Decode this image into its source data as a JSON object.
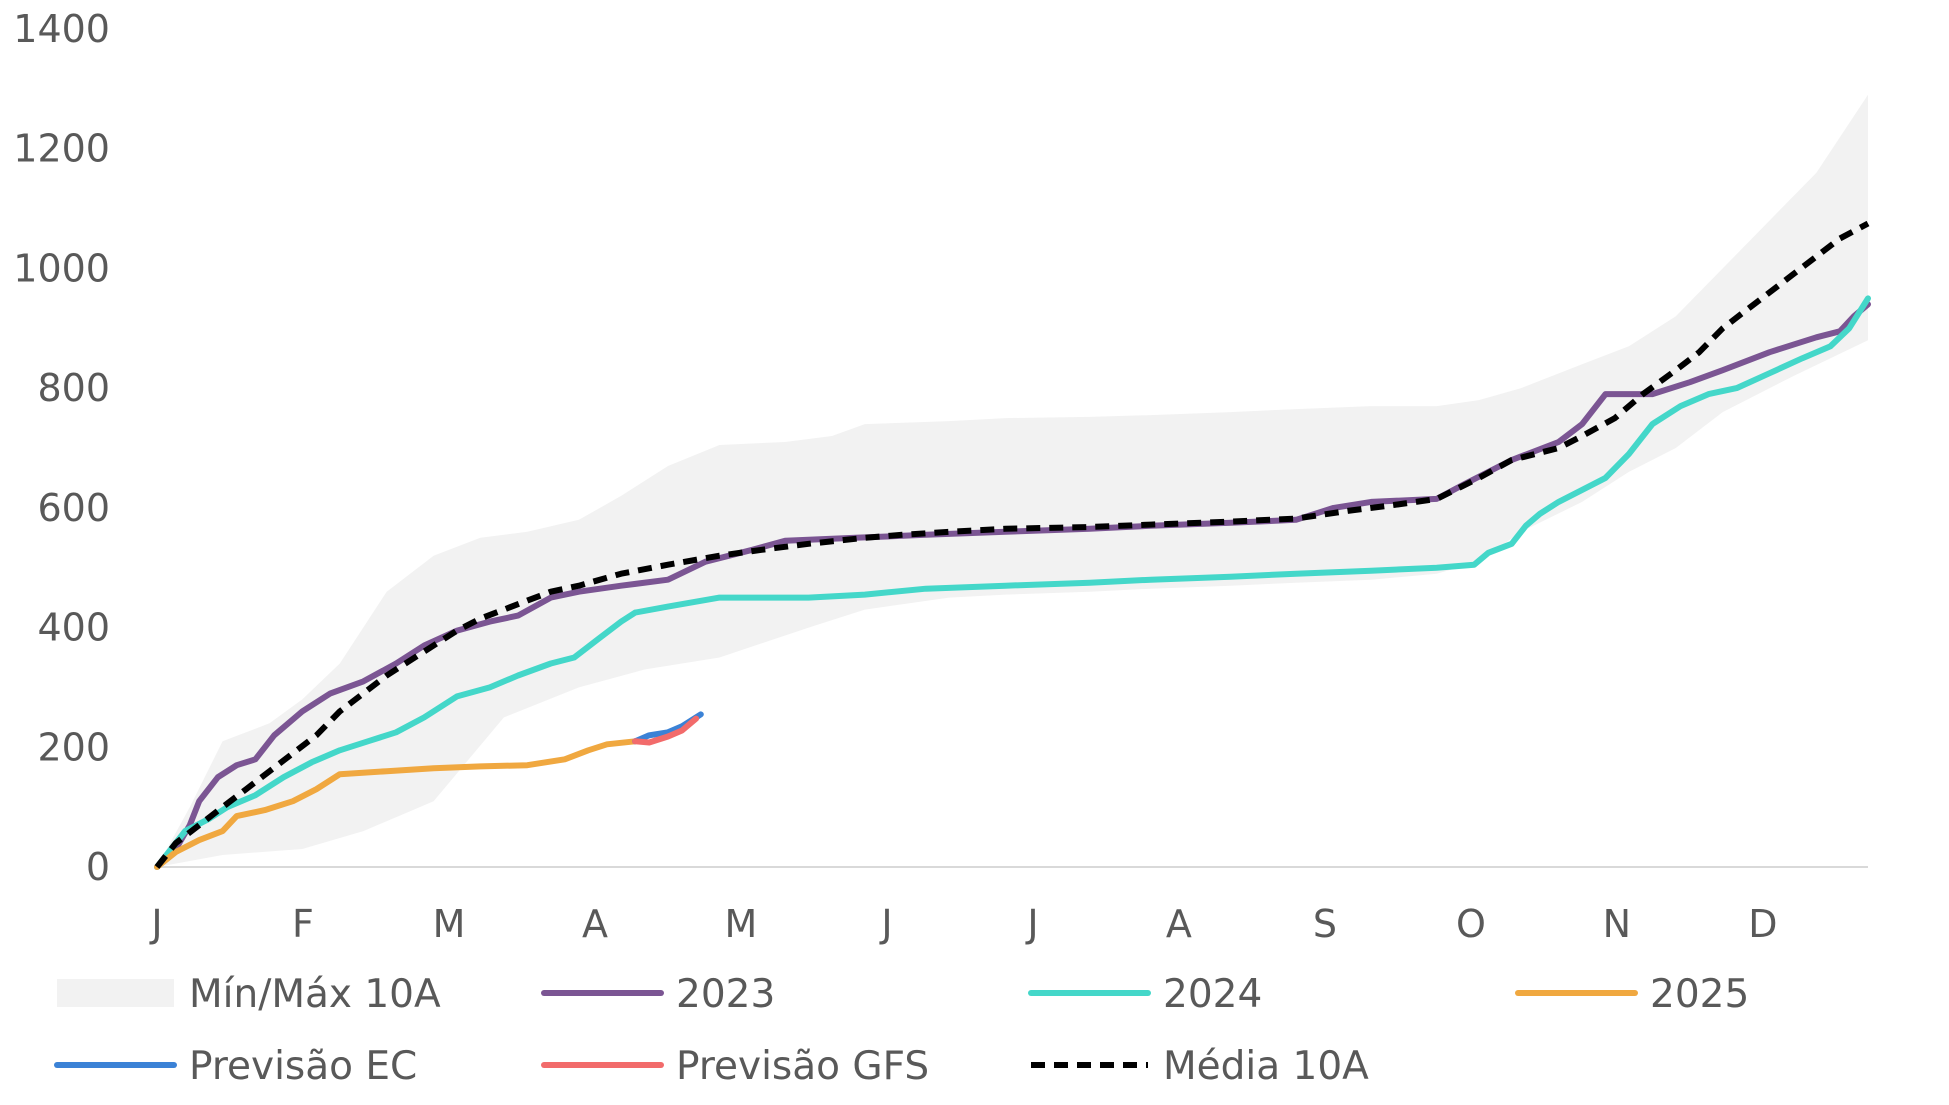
{
  "chart_data": {
    "type": "line",
    "y_ticks": [
      "0",
      "200",
      "400",
      "600",
      "800",
      "1000",
      "1200",
      "1400"
    ],
    "ylim": [
      0,
      1400
    ],
    "x_ticks": [
      "J",
      "F",
      "M",
      "A",
      "M",
      "J",
      "J",
      "A",
      "S",
      "O",
      "N",
      "D"
    ],
    "xlim": [
      1,
      366
    ],
    "grid": false,
    "legend_position": "bottom",
    "band": {
      "name": "Mín/Máx 10A",
      "color": "#f2f2f2",
      "min": [
        [
          1,
          0
        ],
        [
          15,
          20
        ],
        [
          32,
          30
        ],
        [
          45,
          60
        ],
        [
          60,
          110
        ],
        [
          75,
          250
        ],
        [
          91,
          300
        ],
        [
          105,
          330
        ],
        [
          121,
          350
        ],
        [
          140,
          400
        ],
        [
          152,
          430
        ],
        [
          170,
          450
        ],
        [
          182,
          455
        ],
        [
          200,
          460
        ],
        [
          213,
          465
        ],
        [
          230,
          470
        ],
        [
          244,
          475
        ],
        [
          260,
          480
        ],
        [
          274,
          490
        ],
        [
          283,
          510
        ],
        [
          292,
          560
        ],
        [
          305,
          610
        ],
        [
          315,
          660
        ],
        [
          325,
          700
        ],
        [
          335,
          760
        ],
        [
          350,
          820
        ],
        [
          366,
          880
        ]
      ],
      "max": [
        [
          1,
          0
        ],
        [
          8,
          100
        ],
        [
          15,
          210
        ],
        [
          25,
          240
        ],
        [
          32,
          280
        ],
        [
          40,
          340
        ],
        [
          50,
          460
        ],
        [
          60,
          520
        ],
        [
          70,
          550
        ],
        [
          80,
          560
        ],
        [
          91,
          580
        ],
        [
          100,
          620
        ],
        [
          110,
          670
        ],
        [
          121,
          705
        ],
        [
          135,
          710
        ],
        [
          145,
          720
        ],
        [
          152,
          740
        ],
        [
          170,
          745
        ],
        [
          182,
          750
        ],
        [
          200,
          752
        ],
        [
          213,
          755
        ],
        [
          230,
          760
        ],
        [
          244,
          765
        ],
        [
          260,
          770
        ],
        [
          274,
          770
        ],
        [
          283,
          780
        ],
        [
          292,
          800
        ],
        [
          305,
          840
        ],
        [
          315,
          870
        ],
        [
          325,
          920
        ],
        [
          335,
          1000
        ],
        [
          345,
          1080
        ],
        [
          355,
          1160
        ],
        [
          366,
          1290
        ]
      ]
    },
    "series": [
      {
        "name": "2023",
        "color": "#7b5593",
        "dash": false,
        "points": [
          [
            1,
            0
          ],
          [
            5,
            30
          ],
          [
            8,
            70
          ],
          [
            10,
            110
          ],
          [
            14,
            150
          ],
          [
            18,
            170
          ],
          [
            22,
            180
          ],
          [
            26,
            220
          ],
          [
            32,
            260
          ],
          [
            38,
            290
          ],
          [
            45,
            310
          ],
          [
            52,
            340
          ],
          [
            58,
            370
          ],
          [
            65,
            395
          ],
          [
            72,
            410
          ],
          [
            78,
            420
          ],
          [
            85,
            450
          ],
          [
            91,
            460
          ],
          [
            100,
            470
          ],
          [
            110,
            480
          ],
          [
            118,
            510
          ],
          [
            128,
            530
          ],
          [
            135,
            545
          ],
          [
            150,
            550
          ],
          [
            165,
            555
          ],
          [
            182,
            560
          ],
          [
            200,
            565
          ],
          [
            213,
            570
          ],
          [
            230,
            575
          ],
          [
            244,
            580
          ],
          [
            252,
            600
          ],
          [
            260,
            610
          ],
          [
            274,
            615
          ],
          [
            280,
            640
          ],
          [
            290,
            680
          ],
          [
            300,
            710
          ],
          [
            305,
            740
          ],
          [
            310,
            790
          ],
          [
            320,
            790
          ],
          [
            328,
            810
          ],
          [
            335,
            830
          ],
          [
            345,
            860
          ],
          [
            355,
            885
          ],
          [
            360,
            895
          ],
          [
            363,
            920
          ],
          [
            366,
            940
          ]
        ]
      },
      {
        "name": "2024",
        "color": "#44d7c9",
        "dash": false,
        "points": [
          [
            1,
            0
          ],
          [
            4,
            30
          ],
          [
            7,
            60
          ],
          [
            12,
            80
          ],
          [
            16,
            100
          ],
          [
            22,
            120
          ],
          [
            28,
            150
          ],
          [
            34,
            175
          ],
          [
            40,
            195
          ],
          [
            46,
            210
          ],
          [
            52,
            225
          ],
          [
            58,
            250
          ],
          [
            65,
            285
          ],
          [
            72,
            300
          ],
          [
            78,
            320
          ],
          [
            85,
            340
          ],
          [
            90,
            350
          ],
          [
            95,
            380
          ],
          [
            100,
            410
          ],
          [
            103,
            425
          ],
          [
            110,
            435
          ],
          [
            121,
            450
          ],
          [
            140,
            450
          ],
          [
            152,
            455
          ],
          [
            165,
            465
          ],
          [
            182,
            470
          ],
          [
            200,
            475
          ],
          [
            213,
            480
          ],
          [
            230,
            485
          ],
          [
            244,
            490
          ],
          [
            260,
            495
          ],
          [
            274,
            500
          ],
          [
            282,
            505
          ],
          [
            285,
            525
          ],
          [
            290,
            540
          ],
          [
            293,
            570
          ],
          [
            296,
            590
          ],
          [
            300,
            610
          ],
          [
            305,
            630
          ],
          [
            310,
            650
          ],
          [
            315,
            690
          ],
          [
            320,
            740
          ],
          [
            326,
            770
          ],
          [
            332,
            790
          ],
          [
            338,
            800
          ],
          [
            345,
            825
          ],
          [
            352,
            850
          ],
          [
            358,
            870
          ],
          [
            362,
            900
          ],
          [
            366,
            950
          ]
        ]
      },
      {
        "name": "2025",
        "color": "#f0a840",
        "dash": false,
        "points": [
          [
            1,
            0
          ],
          [
            5,
            25
          ],
          [
            10,
            45
          ],
          [
            15,
            60
          ],
          [
            18,
            85
          ],
          [
            24,
            95
          ],
          [
            30,
            110
          ],
          [
            35,
            130
          ],
          [
            40,
            155
          ],
          [
            50,
            160
          ],
          [
            60,
            165
          ],
          [
            70,
            168
          ],
          [
            80,
            170
          ],
          [
            88,
            180
          ],
          [
            93,
            195
          ],
          [
            97,
            205
          ],
          [
            103,
            210
          ]
        ]
      },
      {
        "name": "Previsão EC",
        "color": "#3b82d6",
        "dash": false,
        "points": [
          [
            103,
            210
          ],
          [
            106,
            220
          ],
          [
            110,
            225
          ],
          [
            113,
            235
          ],
          [
            117,
            255
          ]
        ]
      },
      {
        "name": "Previsão GFS",
        "color": "#f26b6b",
        "dash": false,
        "points": [
          [
            103,
            210
          ],
          [
            106,
            208
          ],
          [
            110,
            218
          ],
          [
            113,
            228
          ],
          [
            116,
            248
          ]
        ]
      },
      {
        "name": "Média 10A",
        "color": "#000000",
        "dash": true,
        "points": [
          [
            1,
            0
          ],
          [
            5,
            40
          ],
          [
            10,
            70
          ],
          [
            15,
            100
          ],
          [
            20,
            130
          ],
          [
            25,
            160
          ],
          [
            30,
            190
          ],
          [
            35,
            220
          ],
          [
            40,
            260
          ],
          [
            45,
            290
          ],
          [
            50,
            320
          ],
          [
            55,
            345
          ],
          [
            60,
            370
          ],
          [
            65,
            395
          ],
          [
            70,
            415
          ],
          [
            75,
            430
          ],
          [
            80,
            445
          ],
          [
            85,
            460
          ],
          [
            91,
            470
          ],
          [
            100,
            490
          ],
          [
            110,
            505
          ],
          [
            121,
            520
          ],
          [
            130,
            530
          ],
          [
            140,
            540
          ],
          [
            152,
            550
          ],
          [
            160,
            555
          ],
          [
            170,
            560
          ],
          [
            182,
            565
          ],
          [
            200,
            568
          ],
          [
            213,
            572
          ],
          [
            230,
            577
          ],
          [
            244,
            582
          ],
          [
            255,
            595
          ],
          [
            265,
            605
          ],
          [
            274,
            615
          ],
          [
            283,
            650
          ],
          [
            290,
            680
          ],
          [
            300,
            700
          ],
          [
            305,
            720
          ],
          [
            312,
            750
          ],
          [
            318,
            790
          ],
          [
            325,
            830
          ],
          [
            330,
            860
          ],
          [
            335,
            900
          ],
          [
            340,
            930
          ],
          [
            345,
            960
          ],
          [
            350,
            990
          ],
          [
            355,
            1020
          ],
          [
            360,
            1050
          ],
          [
            366,
            1075
          ]
        ]
      }
    ],
    "legend": [
      {
        "name": "Mín/Máx 10A",
        "type": "area",
        "color": "#f2f2f2"
      },
      {
        "name": "2023",
        "type": "line",
        "color": "#7b5593"
      },
      {
        "name": "2024",
        "type": "line",
        "color": "#44d7c9"
      },
      {
        "name": "2025",
        "type": "line",
        "color": "#f0a840"
      },
      {
        "name": "Previsão EC",
        "type": "line",
        "color": "#3b82d6"
      },
      {
        "name": "Previsão GFS",
        "type": "line",
        "color": "#f26b6b"
      },
      {
        "name": "Média 10A",
        "type": "dashed",
        "color": "#000000"
      }
    ]
  }
}
